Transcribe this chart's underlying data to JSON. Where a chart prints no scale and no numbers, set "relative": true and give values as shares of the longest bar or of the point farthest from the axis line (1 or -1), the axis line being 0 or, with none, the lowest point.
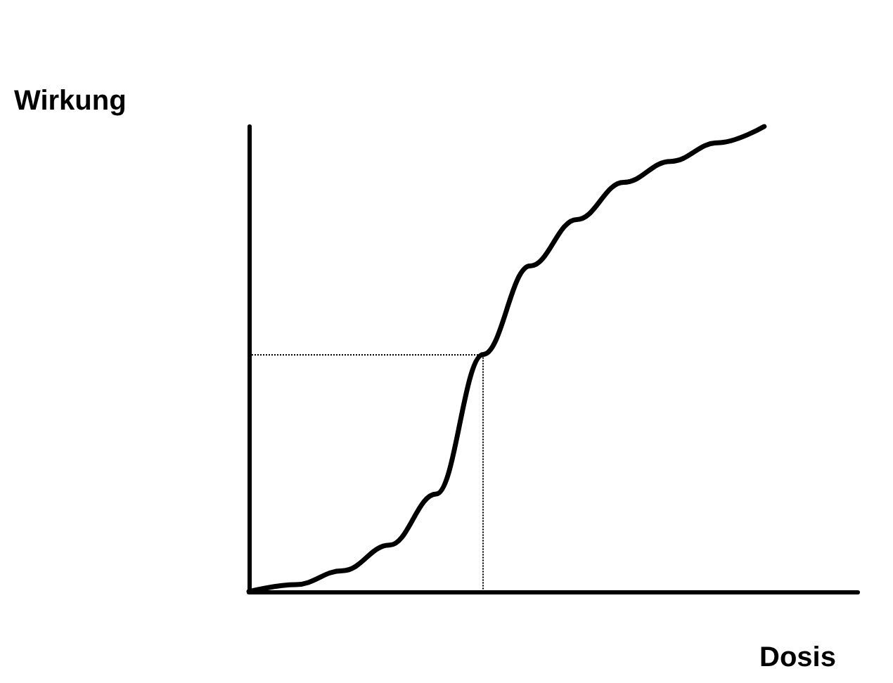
{
  "chart_data": {
    "type": "line",
    "relative": true,
    "xlabel": "Dosis",
    "ylabel": "Wirkung",
    "marker": "none",
    "line_style": "solid",
    "categories": [
      null,
      null,
      null,
      null,
      null,
      null,
      null,
      null,
      null,
      null,
      null,
      null,
      null,
      null
    ],
    "series": [
      {
        "color": "#000000",
        "values": [
          0,
          0.015,
          0.045,
          0.1,
          0.21,
          0.51,
          0.7,
          0.8,
          0.88,
          0.925,
          0.965,
          1,
          null,
          null
        ]
      }
    ],
    "ref_lines": [
      {
        "axis": "y",
        "value": 0.51,
        "color": "#000000",
        "line_style": "dotted"
      }
    ]
  }
}
